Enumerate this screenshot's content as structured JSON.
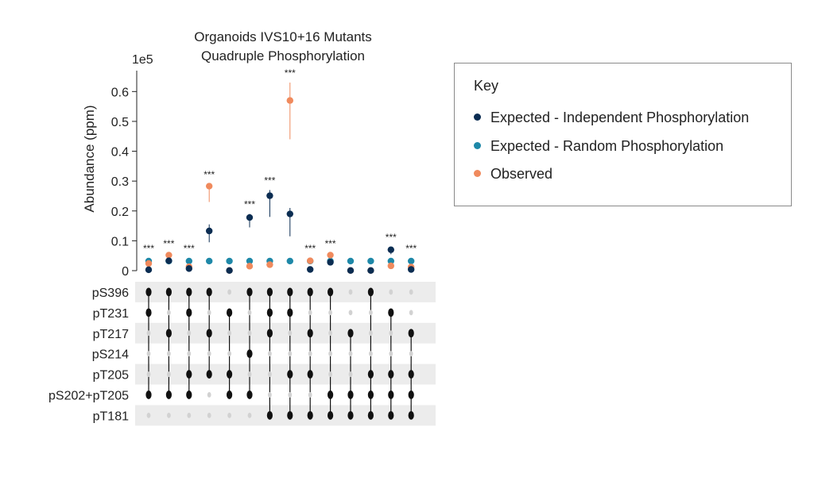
{
  "chart_data": {
    "type": "scatter",
    "title_lines": [
      "Organoids IVS10+16 Mutants",
      "Quadruple Phosphorylation"
    ],
    "ylabel": "Abundance (ppm)",
    "y_offset_label": "1e5",
    "ylim": [
      0,
      0.67
    ],
    "yticks": [
      0,
      0.1,
      0.2,
      0.3,
      0.4,
      0.5,
      0.6
    ],
    "ytick_labels": [
      "0",
      "0.1",
      "0.2",
      "0.3",
      "0.4",
      "0.5",
      "0.6"
    ],
    "series_colors": {
      "independent": "#0b2d52",
      "random": "#1e88a8",
      "observed": "#f08a5d"
    },
    "columns": [
      {
        "independent": 0.003,
        "ind_err": [
          0.003,
          0.003
        ],
        "random": 0.032,
        "observed": 0.024,
        "obs_err": [
          0.024,
          0.024
        ],
        "sig": "***"
      },
      {
        "independent": 0.033,
        "ind_err": [
          0.025,
          0.04
        ],
        "random": 0.032,
        "observed": 0.052,
        "obs_err": [
          0.045,
          0.058
        ],
        "sig": "***"
      },
      {
        "independent": 0.007,
        "ind_err": [
          0.003,
          0.01
        ],
        "random": 0.032,
        "observed": 0.013,
        "obs_err": [
          0.01,
          0.016
        ],
        "sig": "***"
      },
      {
        "independent": 0.133,
        "ind_err": [
          0.095,
          0.155
        ],
        "random": 0.032,
        "observed": 0.283,
        "obs_err": [
          0.23,
          0.29
        ],
        "sig": "***"
      },
      {
        "independent": 0.0005,
        "ind_err": [
          0.0,
          0.001
        ],
        "random": 0.032,
        "observed": 0.0005,
        "obs_err": [
          0.0,
          0.001
        ],
        "sig": ""
      },
      {
        "independent": 0.178,
        "ind_err": [
          0.145,
          0.19
        ],
        "random": 0.032,
        "observed": 0.015,
        "obs_err": [
          0.013,
          0.017
        ],
        "sig": "***"
      },
      {
        "independent": 0.251,
        "ind_err": [
          0.18,
          0.27
        ],
        "random": 0.032,
        "observed": 0.02,
        "obs_err": [
          0.018,
          0.022
        ],
        "sig": "***"
      },
      {
        "independent": 0.19,
        "ind_err": [
          0.115,
          0.21
        ],
        "random": 0.032,
        "observed": 0.57,
        "obs_err": [
          0.44,
          0.63
        ],
        "sig": "***"
      },
      {
        "independent": 0.004,
        "ind_err": [
          0.002,
          0.006
        ],
        "random": 0.032,
        "observed": 0.033,
        "obs_err": [
          0.03,
          0.036
        ],
        "sig": "***"
      },
      {
        "independent": 0.028,
        "ind_err": [
          0.022,
          0.034
        ],
        "random": 0.032,
        "observed": 0.052,
        "obs_err": [
          0.046,
          0.058
        ],
        "sig": "***"
      },
      {
        "independent": 0.0005,
        "ind_err": [
          0.0,
          0.001
        ],
        "random": 0.032,
        "observed": 0.0005,
        "obs_err": [
          0.0,
          0.001
        ],
        "sig": ""
      },
      {
        "independent": 0.0005,
        "ind_err": [
          0.0,
          0.001
        ],
        "random": 0.032,
        "observed": 0.0005,
        "obs_err": [
          0.0,
          0.001
        ],
        "sig": ""
      },
      {
        "independent": 0.07,
        "ind_err": [
          0.055,
          0.08
        ],
        "random": 0.032,
        "observed": 0.016,
        "obs_err": [
          0.013,
          0.018
        ],
        "sig": "***"
      },
      {
        "independent": 0.004,
        "ind_err": [
          0.002,
          0.006
        ],
        "random": 0.032,
        "observed": 0.012,
        "obs_err": [
          0.009,
          0.015
        ],
        "sig": "***"
      }
    ],
    "matrix": {
      "rows": [
        "pS396",
        "pT231",
        "pT217",
        "pS214",
        "pT205",
        "pS202+pT205",
        "pT181"
      ],
      "membership": [
        [
          1,
          1,
          1,
          1,
          0,
          1,
          1,
          1,
          1,
          1,
          0,
          1,
          0,
          0
        ],
        [
          1,
          0,
          1,
          0,
          1,
          0,
          1,
          1,
          0,
          0,
          0,
          0,
          1,
          0
        ],
        [
          0,
          1,
          0,
          1,
          0,
          0,
          1,
          0,
          1,
          0,
          1,
          0,
          0,
          1
        ],
        [
          0,
          0,
          0,
          0,
          0,
          1,
          0,
          0,
          0,
          0,
          0,
          0,
          0,
          0
        ],
        [
          0,
          0,
          1,
          1,
          1,
          0,
          0,
          1,
          1,
          0,
          0,
          1,
          1,
          1
        ],
        [
          1,
          1,
          1,
          0,
          1,
          1,
          0,
          0,
          0,
          1,
          1,
          1,
          1,
          1
        ],
        [
          0,
          0,
          0,
          0,
          0,
          0,
          1,
          1,
          1,
          1,
          1,
          1,
          1,
          1
        ]
      ]
    },
    "legend": {
      "title": "Key",
      "placement": "right",
      "items": [
        {
          "label": "Expected - Independent Phosphorylation",
          "color": "#0b2d52"
        },
        {
          "label": "Expected - Random Phosphorylation",
          "color": "#1e88a8"
        },
        {
          "label": "Observed",
          "color": "#f08a5d"
        }
      ]
    }
  }
}
